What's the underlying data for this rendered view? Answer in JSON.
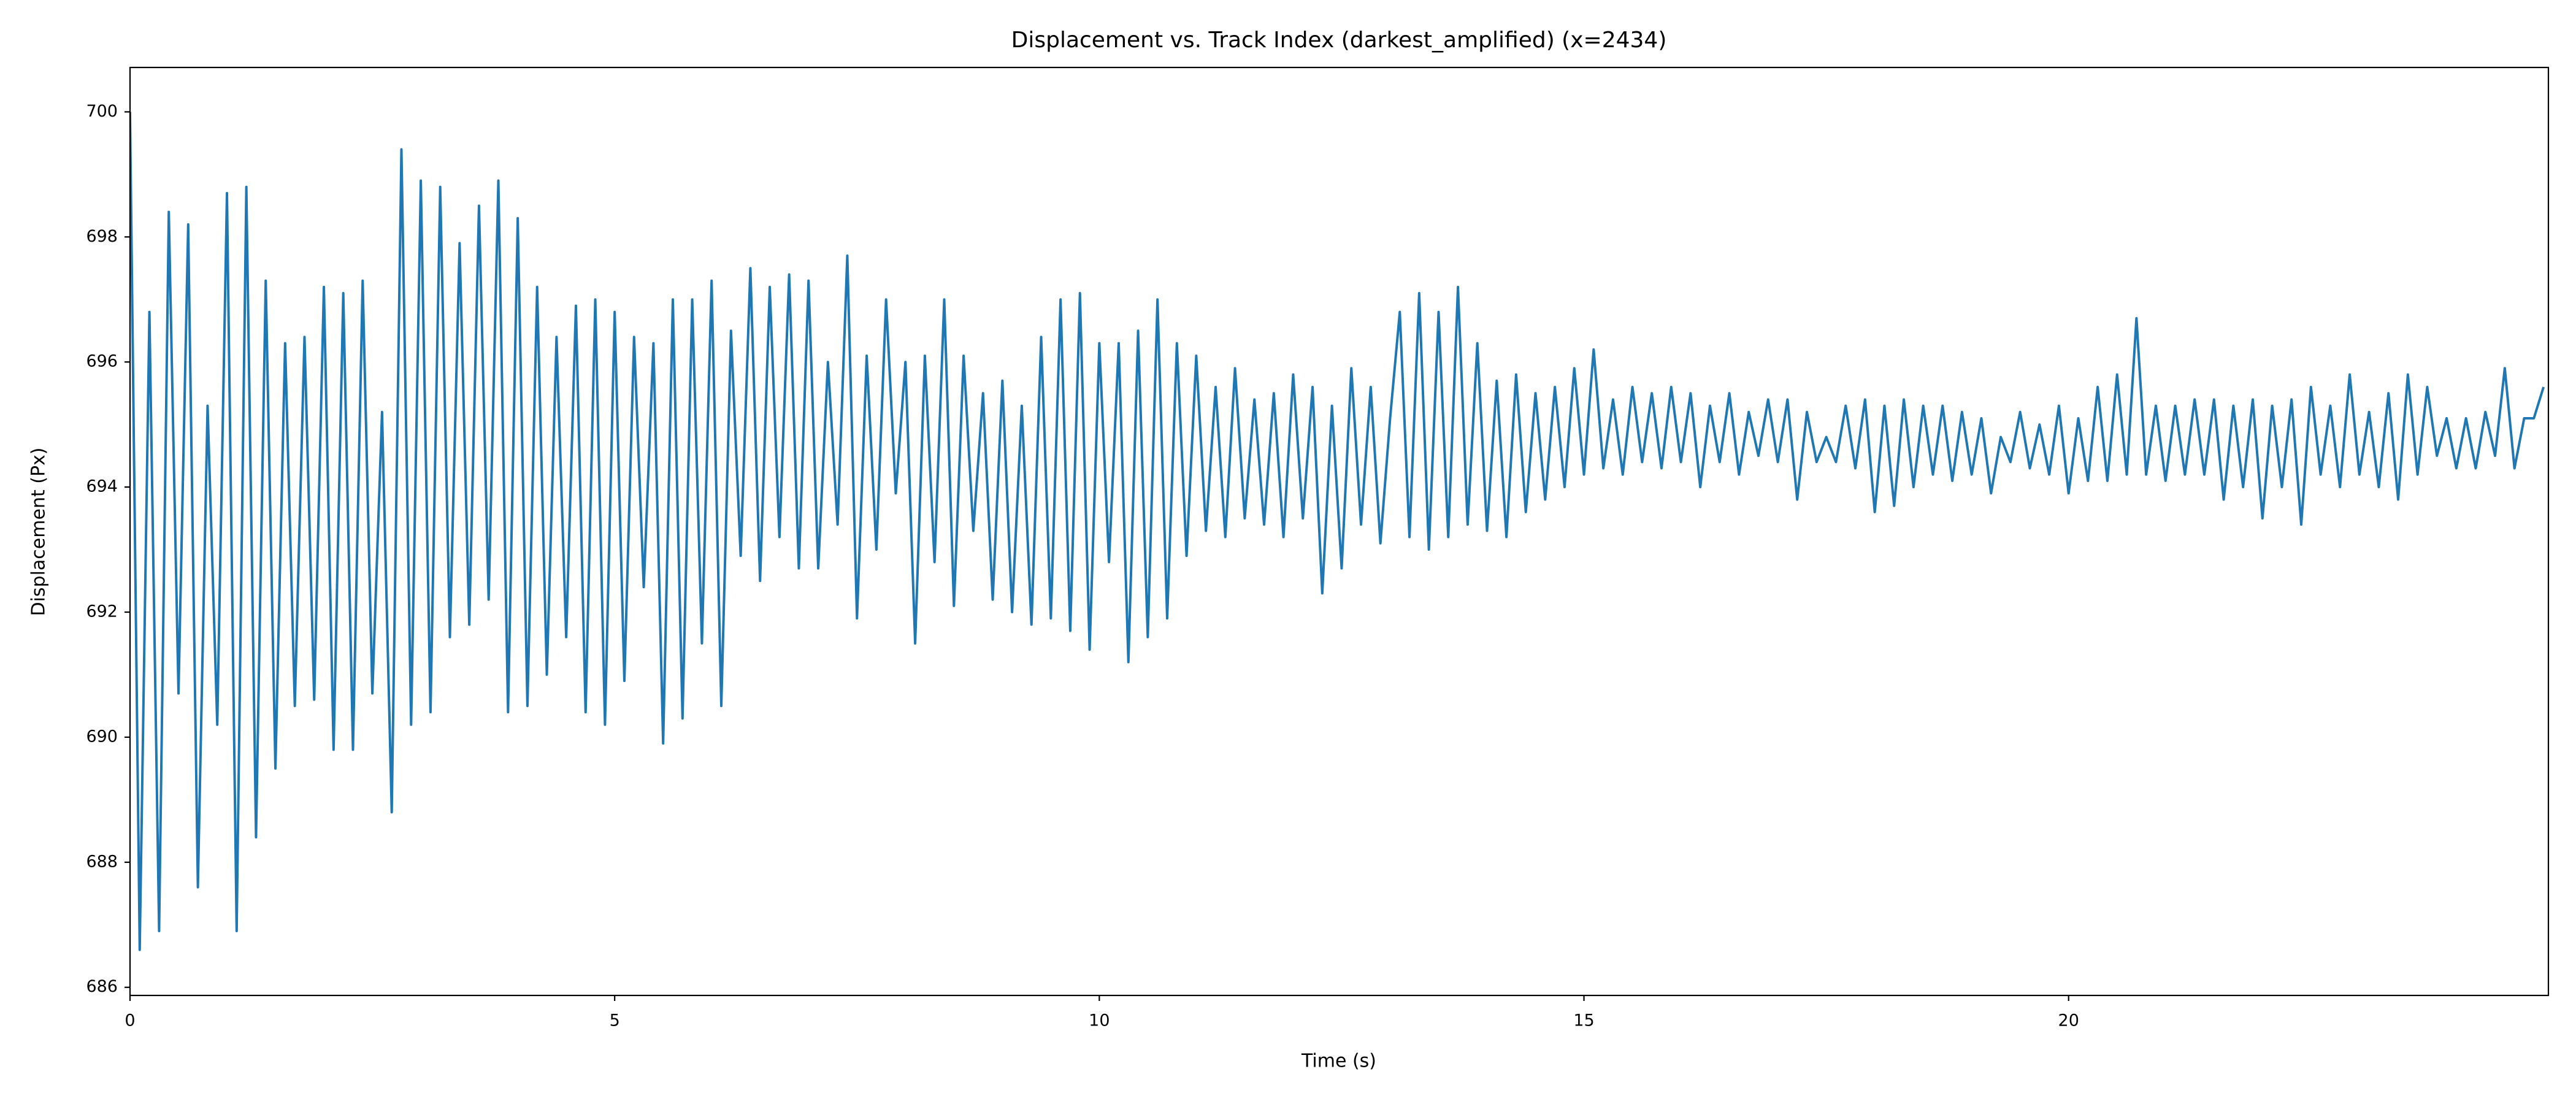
{
  "chart_data": {
    "type": "line",
    "title": "Displacement vs. Track Index (darkest_amplified) (x=2434)",
    "xlabel": "Time (s)",
    "ylabel": "Displacement (Px)",
    "color": "#1f77b4",
    "xlim": [
      0,
      24.95
    ],
    "xticks": [
      0,
      5,
      10,
      15,
      20
    ],
    "ylim": [
      685.87,
      700.71
    ],
    "yticks": [
      686,
      688,
      690,
      692,
      694,
      696,
      698,
      700
    ],
    "x": [
      0,
      0.1,
      0.2,
      0.3,
      0.4,
      0.5,
      0.6,
      0.7,
      0.8,
      0.9,
      1,
      1.1,
      1.2,
      1.3,
      1.4,
      1.5,
      1.6,
      1.7,
      1.8,
      1.9,
      2,
      2.1,
      2.2,
      2.3,
      2.4,
      2.5,
      2.6,
      2.7,
      2.8,
      2.9,
      3,
      3.1,
      3.2,
      3.3,
      3.4,
      3.5,
      3.6,
      3.7,
      3.8,
      3.9,
      4,
      4.1,
      4.2,
      4.3,
      4.4,
      4.5,
      4.6,
      4.7,
      4.8,
      4.9,
      5,
      5.1,
      5.2,
      5.3,
      5.4,
      5.5,
      5.6,
      5.7,
      5.8,
      5.9,
      6,
      6.1,
      6.2,
      6.3,
      6.4,
      6.5,
      6.6,
      6.7,
      6.8,
      6.9,
      7,
      7.1,
      7.2,
      7.3,
      7.4,
      7.5,
      7.6,
      7.7,
      7.8,
      7.9,
      8,
      8.1,
      8.2,
      8.3,
      8.4,
      8.5,
      8.6,
      8.7,
      8.8,
      8.9,
      9,
      9.1,
      9.2,
      9.3,
      9.4,
      9.5,
      9.6,
      9.7,
      9.8,
      9.9,
      10,
      10.1,
      10.2,
      10.3,
      10.4,
      10.5,
      10.6,
      10.7,
      10.8,
      10.9,
      11,
      11.1,
      11.2,
      11.3,
      11.4,
      11.5,
      11.6,
      11.7,
      11.8,
      11.9,
      12,
      12.1,
      12.2,
      12.3,
      12.4,
      12.5,
      12.6,
      12.7,
      12.8,
      12.9,
      13,
      13.1,
      13.2,
      13.3,
      13.4,
      13.5,
      13.6,
      13.7,
      13.8,
      13.9,
      14,
      14.1,
      14.2,
      14.3,
      14.4,
      14.5,
      14.6,
      14.7,
      14.8,
      14.9,
      15,
      15.1,
      15.2,
      15.3,
      15.4,
      15.5,
      15.6,
      15.7,
      15.8,
      15.9,
      16,
      16.1,
      16.2,
      16.3,
      16.4,
      16.5,
      16.6,
      16.7,
      16.8,
      16.9,
      17,
      17.1,
      17.2,
      17.3,
      17.4,
      17.5,
      17.6,
      17.7,
      17.8,
      17.9,
      18,
      18.1,
      18.2,
      18.3,
      18.4,
      18.5,
      18.6,
      18.7,
      18.8,
      18.9,
      19,
      19.1,
      19.2,
      19.3,
      19.4,
      19.5,
      19.6,
      19.7,
      19.8,
      19.9,
      20,
      20.1,
      20.2,
      20.3,
      20.4,
      20.5,
      20.6,
      20.7,
      20.8,
      20.9,
      21,
      21.1,
      21.2,
      21.3,
      21.4,
      21.5,
      21.6,
      21.7,
      21.8,
      21.9,
      22,
      22.1,
      22.2,
      22.3,
      22.4,
      22.5,
      22.6,
      22.7,
      22.8,
      22.9,
      23,
      23.1,
      23.2,
      23.3,
      23.4,
      23.5,
      23.6,
      23.7,
      23.8,
      23.9,
      24,
      24.1,
      24.2,
      24.3,
      24.4,
      24.5,
      24.6,
      24.7,
      24.8,
      24.9
    ],
    "values": [
      700,
      686.6,
      696.8,
      686.9,
      698.4,
      690.7,
      698.2,
      687.6,
      695.3,
      690.2,
      698.7,
      686.9,
      698.8,
      688.4,
      697.3,
      689.5,
      696.3,
      690.5,
      696.4,
      690.6,
      697.2,
      689.8,
      697.1,
      689.8,
      697.3,
      690.7,
      695.2,
      688.8,
      699.4,
      690.2,
      698.9,
      690.4,
      698.8,
      691.6,
      697.9,
      691.8,
      698.5,
      692.2,
      698.9,
      690.4,
      698.3,
      690.5,
      697.2,
      691.0,
      696.4,
      691.6,
      696.9,
      690.4,
      697.0,
      690.2,
      696.8,
      690.9,
      696.4,
      692.4,
      696.3,
      689.9,
      697.0,
      690.3,
      697.0,
      691.5,
      697.3,
      690.5,
      696.5,
      692.9,
      697.5,
      692.5,
      697.2,
      693.2,
      697.4,
      692.7,
      697.3,
      692.7,
      696.0,
      693.4,
      697.7,
      691.9,
      696.1,
      693.0,
      697.0,
      693.9,
      696.0,
      691.5,
      696.1,
      692.8,
      697.0,
      692.1,
      696.1,
      693.3,
      695.5,
      692.2,
      695.7,
      692.0,
      695.3,
      691.8,
      696.4,
      691.9,
      697.0,
      691.7,
      697.1,
      691.4,
      696.3,
      692.8,
      696.3,
      691.2,
      696.5,
      691.6,
      697.0,
      691.9,
      696.3,
      692.9,
      696.1,
      693.3,
      695.6,
      693.2,
      695.9,
      693.5,
      695.4,
      693.4,
      695.5,
      693.2,
      695.8,
      693.5,
      695.6,
      692.3,
      695.3,
      692.7,
      695.9,
      693.4,
      695.6,
      693.1,
      695.1,
      696.8,
      693.2,
      697.1,
      693.0,
      696.8,
      693.2,
      697.2,
      693.4,
      696.3,
      693.3,
      695.7,
      693.2,
      695.8,
      693.6,
      695.5,
      693.8,
      695.6,
      694.0,
      695.9,
      694.2,
      696.2,
      694.3,
      695.4,
      694.2,
      695.6,
      694.4,
      695.5,
      694.3,
      695.6,
      694.4,
      695.5,
      694.0,
      695.3,
      694.4,
      695.5,
      694.2,
      695.2,
      694.5,
      695.4,
      694.4,
      695.4,
      693.8,
      695.2,
      694.4,
      694.8,
      694.4,
      695.3,
      694.3,
      695.4,
      693.6,
      695.3,
      693.7,
      695.4,
      694.0,
      695.3,
      694.2,
      695.3,
      694.1,
      695.2,
      694.2,
      695.1,
      693.9,
      694.8,
      694.4,
      695.2,
      694.3,
      695.0,
      694.2,
      695.3,
      693.9,
      695.1,
      694.1,
      695.6,
      694.1,
      695.8,
      694.2,
      696.7,
      694.2,
      695.3,
      694.1,
      695.3,
      694.2,
      695.4,
      694.2,
      695.4,
      693.8,
      695.3,
      694.0,
      695.4,
      693.5,
      695.3,
      694.0,
      695.4,
      693.4,
      695.6,
      694.2,
      695.3,
      694.0,
      695.8,
      694.2,
      695.2,
      694.0,
      695.5,
      693.8,
      695.8,
      694.2,
      695.6,
      694.5,
      695.1,
      694.3,
      695.1,
      694.3,
      695.2,
      694.5,
      695.9,
      694.3,
      695.1,
      695.1,
      695.6
    ]
  }
}
